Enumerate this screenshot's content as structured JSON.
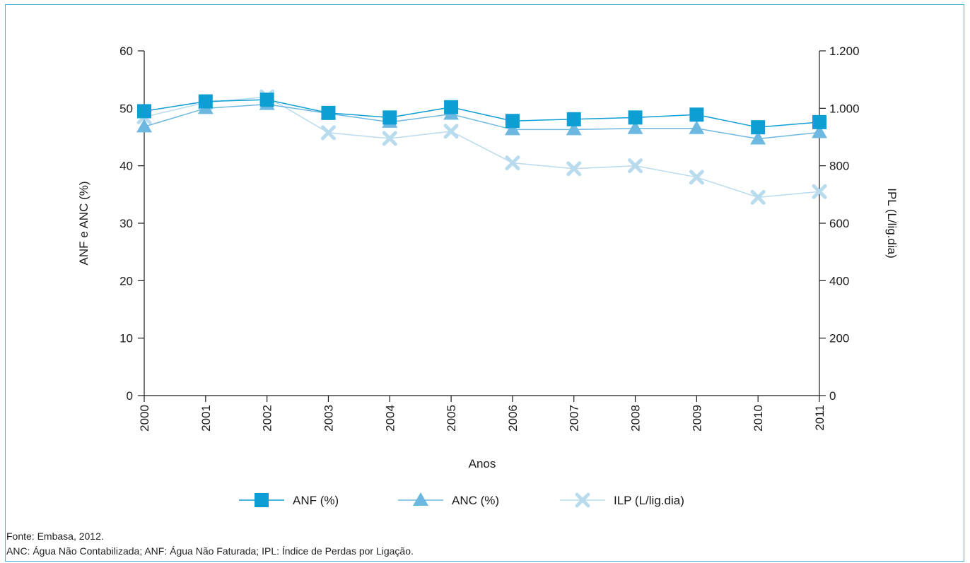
{
  "chart_data": {
    "type": "line",
    "xlabel": "Anos",
    "ylabel_left": "ANF e ANC (%)",
    "ylabel_right": "IPL (L/lig.dia)",
    "categories": [
      "2000",
      "2001",
      "2002",
      "2003",
      "2004",
      "2005",
      "2006",
      "2007",
      "2008",
      "2009",
      "2010",
      "2011"
    ],
    "y_left": {
      "range": [
        0,
        60
      ],
      "ticks": [
        0,
        10,
        20,
        30,
        40,
        50,
        60
      ],
      "tick_labels": [
        "0",
        "10",
        "20",
        "30",
        "40",
        "50",
        "60"
      ]
    },
    "y_right": {
      "range": [
        0,
        1200
      ],
      "ticks": [
        0,
        200,
        400,
        600,
        800,
        1000,
        1200
      ],
      "tick_labels": [
        "0",
        "200",
        "400",
        "600",
        "800",
        "1.000",
        "1.200"
      ]
    },
    "grid": false,
    "legend_position": "bottom",
    "series": [
      {
        "name": "ANF (%)",
        "axis": "left",
        "marker": "square",
        "color": "#0d9ed4",
        "values": [
          49.5,
          51.2,
          51.5,
          49.2,
          48.4,
          50.2,
          47.8,
          48.1,
          48.4,
          48.9,
          46.7,
          47.6
        ]
      },
      {
        "name": "ANC (%)",
        "axis": "left",
        "marker": "triangle",
        "color": "#6db8e0",
        "values": [
          46.8,
          50.0,
          50.7,
          49.1,
          47.6,
          49.0,
          46.3,
          46.3,
          46.5,
          46.5,
          44.7,
          45.8
        ]
      },
      {
        "name": "ILP (L/lig.dia)",
        "axis": "right",
        "marker": "x",
        "color": "#b9dbee",
        "values": [
          970,
          1020,
          1040,
          915,
          895,
          920,
          810,
          790,
          800,
          760,
          690,
          710
        ]
      }
    ]
  },
  "notes": {
    "source": "Fonte: Embasa, 2012.",
    "abbreviations": "ANC: Água Não Contabilizada; ANF: Água Não Faturada; IPL: Índice de Perdas por Ligação."
  }
}
